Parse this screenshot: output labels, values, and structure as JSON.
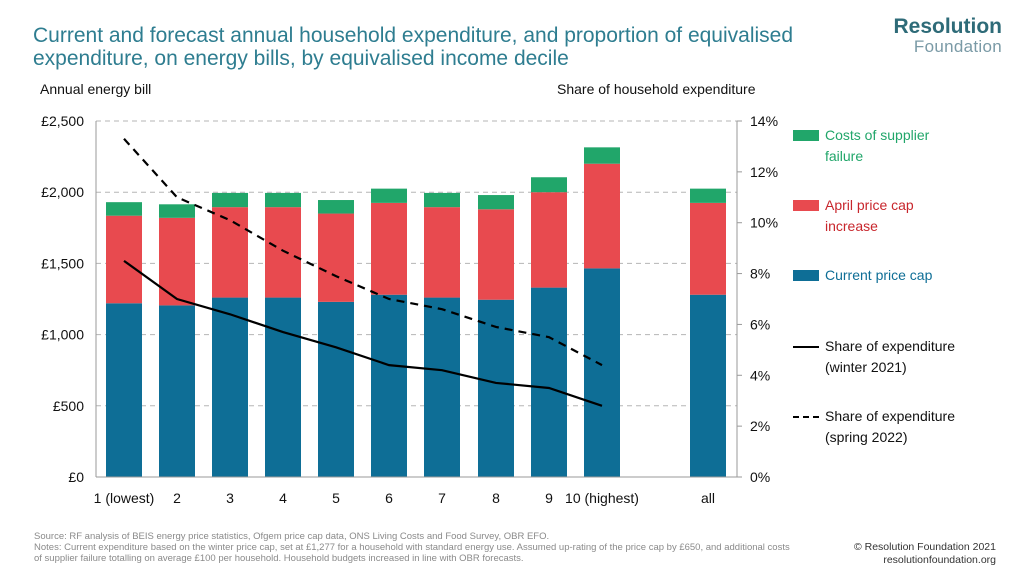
{
  "header": {
    "title": "Current and forecast annual household expenditure, and proportion of equivalised expenditure, on energy bills, by equivalised income decile"
  },
  "logo": {
    "line1": "Resolution",
    "line2": "Foundation"
  },
  "colors": {
    "current": "#0e6e96",
    "april": "#e84a4f",
    "supplier": "#21a66a",
    "title": "#2e7d90"
  },
  "chart_data": {
    "type": "bar",
    "stacked": true,
    "categories": [
      "1 (lowest)",
      "2",
      "3",
      "4",
      "5",
      "6",
      "7",
      "8",
      "9",
      "10 (highest)",
      "all"
    ],
    "left_axis": {
      "title": "Annual energy bill",
      "ticks": [
        "£0",
        "£500",
        "£1,000",
        "£1,500",
        "£2,000",
        "£2,500"
      ],
      "tick_values": [
        0,
        500,
        1000,
        1500,
        2000,
        2500
      ],
      "ylim": [
        0,
        2500
      ]
    },
    "right_axis": {
      "title": "Share of household expenditure",
      "ticks": [
        "0%",
        "2%",
        "4%",
        "6%",
        "8%",
        "10%",
        "12%",
        "14%"
      ],
      "tick_values": [
        0,
        2,
        4,
        6,
        8,
        10,
        12,
        14
      ],
      "ylim": [
        0,
        14
      ]
    },
    "bar_series": [
      {
        "name": "Current price cap",
        "color": "#0e6e96",
        "values": [
          1220,
          1205,
          1260,
          1260,
          1230,
          1280,
          1260,
          1245,
          1330,
          1465,
          1280
        ]
      },
      {
        "name": "April price cap increase",
        "color": "#e84a4f",
        "values": [
          615,
          615,
          635,
          635,
          620,
          645,
          635,
          635,
          670,
          735,
          645
        ]
      },
      {
        "name": "Costs of supplier failure",
        "color": "#21a66a",
        "values": [
          95,
          95,
          100,
          100,
          95,
          100,
          100,
          100,
          105,
          115,
          100
        ]
      }
    ],
    "line_series": [
      {
        "name": "Share of expenditure (winter 2021)",
        "style": "solid",
        "values": [
          8.5,
          7.0,
          6.4,
          5.7,
          5.1,
          4.4,
          4.2,
          3.7,
          3.5,
          2.8,
          null
        ]
      },
      {
        "name": "Share of expenditure (spring 2022)",
        "style": "dashed",
        "values": [
          13.3,
          11.0,
          10.1,
          8.9,
          7.9,
          7.0,
          6.6,
          5.9,
          5.5,
          4.4,
          null
        ]
      }
    ]
  },
  "legend": {
    "supplier": "Costs of supplier failure",
    "april": "April price cap increase",
    "current": "Current price cap",
    "winter": "Share of expenditure (winter 2021)",
    "spring": "Share of expenditure (spring 2022)"
  },
  "footer": {
    "source": "Source: RF analysis of BEIS energy price statistics, Ofgem price cap data, ONS Living Costs and Food Survey, OBR EFO.",
    "notes": "Notes: Current expenditure based on the winter price cap, set at £1,277 for a household with standard energy use. Assumed up-rating of the price cap by £650, and additional costs of supplier failure totalling on average £100 per household. Household budgets increased in line with OBR forecasts.",
    "copyright": "© Resolution Foundation 2021",
    "website": "resolutionfoundation.org"
  }
}
